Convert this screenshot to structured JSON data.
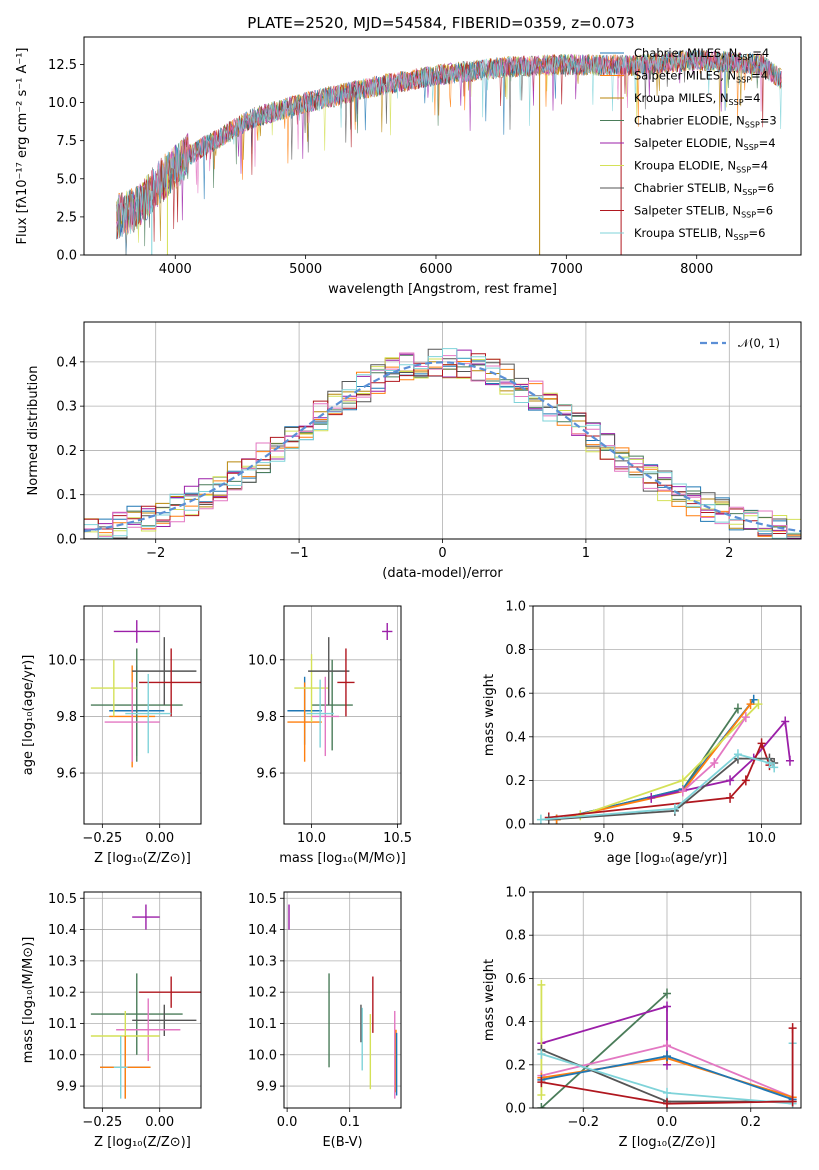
{
  "colors": {
    "blue": "#1f77b4",
    "orange": "#ff7f0e",
    "brown": "#b8860b",
    "green": "#4a7c59",
    "purple": "#9b1fa8",
    "yellow": "#d4e157",
    "gray": "#555555",
    "red": "#b0171f",
    "cyan": "#7fd3d9",
    "pink": "#e377c2",
    "dashed": "#5b8fd6"
  },
  "chart_data": [
    {
      "id": "spectrum",
      "type": "line",
      "title": "PLATE=2520, MJD=54584, FIBERID=0359, z=0.073",
      "xlabel": "wavelength [Angstrom, rest frame]",
      "ylabel": "Flux [fλ10⁻¹⁷ erg cm⁻² s⁻¹ A⁻¹]",
      "xlim": [
        3300,
        8800
      ],
      "ylim": [
        0,
        14.3
      ],
      "xticks": [
        4000,
        5000,
        6000,
        7000,
        8000
      ],
      "yticks": [
        0.0,
        2.5,
        5.0,
        7.5,
        10.0,
        12.5
      ],
      "legend_position": "right",
      "legend": [
        {
          "label": "Chabrier MILES, N",
          "sub": "SSP",
          "suffix": "=4",
          "color": "blue"
        },
        {
          "label": "Salpeter MILES, N",
          "sub": "SSP",
          "suffix": "=4",
          "color": "orange"
        },
        {
          "label": "Kroupa MILES, N",
          "sub": "SSP",
          "suffix": "=4",
          "color": "brown"
        },
        {
          "label": "Chabrier ELODIE, N",
          "sub": "SSP",
          "suffix": "=3",
          "color": "green"
        },
        {
          "label": "Salpeter ELODIE, N",
          "sub": "SSP",
          "suffix": "=4",
          "color": "purple"
        },
        {
          "label": "Kroupa ELODIE, N",
          "sub": "SSP",
          "suffix": "=4",
          "color": "yellow"
        },
        {
          "label": "Chabrier STELIB, N",
          "sub": "SSP",
          "suffix": "=6",
          "color": "gray"
        },
        {
          "label": "Salpeter STELIB, N",
          "sub": "SSP",
          "suffix": "=6",
          "color": "red"
        },
        {
          "label": "Kroupa STELIB, N",
          "sub": "SSP",
          "suffix": "=6",
          "color": "cyan"
        }
      ],
      "continuum": [
        [
          3550,
          2.5
        ],
        [
          3700,
          3.0
        ],
        [
          3900,
          5.0
        ],
        [
          4100,
          6.5
        ],
        [
          4300,
          7.5
        ],
        [
          4600,
          9.0
        ],
        [
          5000,
          10.0
        ],
        [
          5500,
          11.0
        ],
        [
          6000,
          11.8
        ],
        [
          6500,
          12.3
        ],
        [
          7000,
          12.5
        ],
        [
          7500,
          12.4
        ],
        [
          8000,
          12.8
        ],
        [
          8500,
          12.5
        ],
        [
          8650,
          11.5
        ]
      ]
    },
    {
      "id": "residuals",
      "type": "line",
      "xlabel": "(data-model)/error",
      "ylabel": "Normed distribution",
      "xlim": [
        -2.5,
        2.5
      ],
      "ylim": [
        0,
        0.49
      ],
      "xticks": [
        -2,
        -1,
        0,
        1,
        2
      ],
      "yticks": [
        0.0,
        0.1,
        0.2,
        0.3,
        0.4
      ],
      "legend": [
        {
          "label": "𝒩(0, 1)",
          "color": "dashed",
          "style": "dashed"
        }
      ],
      "gaussian": {
        "mean": 0,
        "sigma": 1
      }
    },
    {
      "id": "z-age",
      "type": "scatter",
      "xlabel": "Z [log₁₀(Z/Z⊙)]",
      "ylabel": "age  [log₁₀(age/yr)]",
      "xlim": [
        -0.33,
        0.18
      ],
      "ylim": [
        9.42,
        10.19
      ],
      "xticks": [
        -0.25,
        0.0
      ],
      "yticks": [
        9.6,
        9.8,
        10.0
      ],
      "points": [
        {
          "x": -0.1,
          "y": 10.1,
          "xerr": 0.1,
          "yerr": 0.04,
          "color": "purple"
        },
        {
          "x": -0.1,
          "y": 9.82,
          "xerr": 0.12,
          "yerr": 0.16,
          "color": "blue"
        },
        {
          "x": -0.12,
          "y": 9.8,
          "xerr": 0.1,
          "yerr": 0.18,
          "color": "orange"
        },
        {
          "x": -0.1,
          "y": 9.84,
          "xerr": 0.2,
          "yerr": 0.2,
          "color": "green"
        },
        {
          "x": -0.2,
          "y": 9.9,
          "xerr": 0.1,
          "yerr": 0.1,
          "color": "yellow"
        },
        {
          "x": 0.02,
          "y": 9.96,
          "xerr": 0.14,
          "yerr": 0.12,
          "color": "gray"
        },
        {
          "x": 0.05,
          "y": 9.92,
          "xerr": 0.14,
          "yerr": 0.12,
          "color": "red"
        },
        {
          "x": -0.12,
          "y": 9.78,
          "xerr": 0.12,
          "yerr": 0.14,
          "color": "pink"
        },
        {
          "x": -0.05,
          "y": 9.81,
          "xerr": 0.1,
          "yerr": 0.14,
          "color": "cyan"
        }
      ]
    },
    {
      "id": "mass-age",
      "type": "scatter",
      "xlabel": "mass [log₁₀(M/M⊙)]",
      "xlim": [
        9.84,
        10.52
      ],
      "ylim": [
        9.42,
        10.19
      ],
      "xticks": [
        10.0,
        10.5
      ],
      "yticks": [
        9.6,
        9.8,
        10.0
      ],
      "points": [
        {
          "x": 10.44,
          "y": 10.1,
          "xerr": 0.03,
          "yerr": 0.03,
          "color": "purple"
        },
        {
          "x": 9.96,
          "y": 9.82,
          "xerr": 0.1,
          "yerr": 0.12,
          "color": "blue"
        },
        {
          "x": 9.96,
          "y": 9.78,
          "xerr": 0.1,
          "yerr": 0.14,
          "color": "orange"
        },
        {
          "x": 10.12,
          "y": 9.84,
          "xerr": 0.12,
          "yerr": 0.16,
          "color": "green"
        },
        {
          "x": 10.0,
          "y": 9.9,
          "xerr": 0.1,
          "yerr": 0.12,
          "color": "yellow"
        },
        {
          "x": 10.1,
          "y": 9.96,
          "xerr": 0.12,
          "yerr": 0.12,
          "color": "gray"
        },
        {
          "x": 10.2,
          "y": 9.92,
          "xerr": 0.05,
          "yerr": 0.12,
          "color": "red"
        },
        {
          "x": 10.08,
          "y": 9.8,
          "xerr": 0.08,
          "yerr": 0.14,
          "color": "pink"
        },
        {
          "x": 10.05,
          "y": 9.81,
          "xerr": 0.08,
          "yerr": 0.12,
          "color": "cyan"
        }
      ]
    },
    {
      "id": "age-weight",
      "type": "line",
      "xlabel": "age  [log₁₀(age/yr)]",
      "ylabel": "mass weight",
      "xlim": [
        8.55,
        10.25
      ],
      "ylim": [
        0,
        1.0
      ],
      "xticks": [
        9.0,
        9.5,
        10.0
      ],
      "yticks": [
        0.0,
        0.2,
        0.4,
        0.6,
        0.8,
        1.0
      ],
      "series": [
        {
          "color": "green",
          "x": [
            8.7,
            9.5,
            9.85
          ],
          "y": [
            0.02,
            0.16,
            0.53
          ]
        },
        {
          "color": "blue",
          "x": [
            8.7,
            9.5,
            9.95
          ],
          "y": [
            0.02,
            0.16,
            0.57
          ]
        },
        {
          "color": "orange",
          "x": [
            8.7,
            9.5,
            9.93
          ],
          "y": [
            0.02,
            0.15,
            0.55
          ]
        },
        {
          "color": "yellow",
          "x": [
            8.85,
            9.5,
            9.98
          ],
          "y": [
            0.04,
            0.2,
            0.55
          ]
        },
        {
          "color": "purple",
          "x": [
            9.3,
            9.8,
            9.95,
            10.15,
            10.18
          ],
          "y": [
            0.12,
            0.2,
            0.3,
            0.47,
            0.29
          ]
        },
        {
          "color": "red",
          "x": [
            8.65,
            9.8,
            9.9,
            10.0,
            10.05
          ],
          "y": [
            0.03,
            0.12,
            0.2,
            0.37,
            0.27
          ]
        },
        {
          "color": "gray",
          "x": [
            8.65,
            9.45,
            9.85,
            10.05,
            10.08
          ],
          "y": [
            0.02,
            0.06,
            0.3,
            0.3,
            0.28
          ]
        },
        {
          "color": "cyan",
          "x": [
            8.6,
            9.45,
            9.85,
            10.05,
            10.08
          ],
          "y": [
            0.02,
            0.07,
            0.32,
            0.28,
            0.26
          ]
        },
        {
          "color": "pink",
          "x": [
            9.5,
            9.7,
            9.9
          ],
          "y": [
            0.15,
            0.28,
            0.49
          ]
        }
      ]
    },
    {
      "id": "z-mass",
      "type": "scatter",
      "xlabel": "Z [log₁₀(Z/Z⊙)]",
      "ylabel": "mass [log₁₀(M/M⊙)]",
      "xlim": [
        -0.33,
        0.18
      ],
      "ylim": [
        9.83,
        10.52
      ],
      "xticks": [
        -0.25,
        0.0
      ],
      "yticks": [
        9.9,
        10.0,
        10.1,
        10.2,
        10.3,
        10.4,
        10.5
      ],
      "points": [
        {
          "x": -0.06,
          "y": 10.44,
          "xerr": 0.06,
          "yerr": 0.04,
          "color": "purple"
        },
        {
          "x": 0.05,
          "y": 10.2,
          "xerr": 0.14,
          "yerr": 0.05,
          "color": "red"
        },
        {
          "x": -0.1,
          "y": 10.13,
          "xerr": 0.2,
          "yerr": 0.13,
          "color": "green"
        },
        {
          "x": 0.02,
          "y": 10.11,
          "xerr": 0.14,
          "yerr": 0.05,
          "color": "gray"
        },
        {
          "x": -0.05,
          "y": 10.08,
          "xerr": 0.14,
          "yerr": 0.1,
          "color": "pink"
        },
        {
          "x": -0.15,
          "y": 10.06,
          "xerr": 0.15,
          "yerr": 0.08,
          "color": "yellow"
        },
        {
          "x": -0.15,
          "y": 9.96,
          "xerr": 0.11,
          "yerr": 0.1,
          "color": "blue"
        },
        {
          "x": -0.15,
          "y": 9.96,
          "xerr": 0.11,
          "yerr": 0.1,
          "color": "orange"
        },
        {
          "x": -0.17,
          "y": 9.96,
          "xerr": 0.03,
          "yerr": 0.1,
          "color": "cyan"
        }
      ]
    },
    {
      "id": "ebv-mass",
      "type": "scatter",
      "xlabel": "E(B-V)",
      "xlim": [
        -0.005,
        0.182
      ],
      "ylim": [
        9.83,
        10.52
      ],
      "xticks": [
        0.0,
        0.1
      ],
      "yticks": [
        9.9,
        10.0,
        10.1,
        10.2,
        10.3,
        10.4,
        10.5
      ],
      "points": [
        {
          "x": 0.003,
          "y": 10.44,
          "yerr": 0.04,
          "color": "purple"
        },
        {
          "x": 0.067,
          "y": 10.11,
          "yerr": 0.15,
          "color": "green"
        },
        {
          "x": 0.118,
          "y": 10.1,
          "yerr": 0.06,
          "color": "gray"
        },
        {
          "x": 0.12,
          "y": 10.05,
          "yerr": 0.1,
          "color": "cyan"
        },
        {
          "x": 0.133,
          "y": 10.01,
          "yerr": 0.12,
          "color": "yellow"
        },
        {
          "x": 0.137,
          "y": 10.16,
          "yerr": 0.09,
          "color": "red"
        },
        {
          "x": 0.172,
          "y": 10.0,
          "yerr": 0.14,
          "color": "pink"
        },
        {
          "x": 0.174,
          "y": 9.98,
          "yerr": 0.1,
          "color": "orange"
        },
        {
          "x": 0.175,
          "y": 9.97,
          "yerr": 0.1,
          "color": "blue"
        }
      ]
    },
    {
      "id": "z-weight",
      "type": "line",
      "xlabel": "Z [log₁₀(Z/Z⊙)]",
      "ylabel": "mass weight",
      "xlim": [
        -0.32,
        0.32
      ],
      "ylim": [
        0,
        1.0
      ],
      "xticks": [
        -0.2,
        0.0,
        0.2
      ],
      "yticks": [
        0.0,
        0.2,
        0.4,
        0.6,
        0.8,
        1.0
      ],
      "series": [
        {
          "color": "green",
          "x": [
            -0.3,
            0.0
          ],
          "y": [
            0.0,
            0.53
          ]
        },
        {
          "color": "purple",
          "x": [
            -0.3,
            0.0,
            0.0
          ],
          "y": [
            0.3,
            0.47,
            0.2
          ]
        },
        {
          "color": "yellow",
          "x": [
            -0.3,
            -0.3
          ],
          "y": [
            0.57,
            0.06
          ]
        },
        {
          "color": "pink",
          "x": [
            -0.3,
            0.0,
            0.3
          ],
          "y": [
            0.15,
            0.29,
            0.05
          ]
        },
        {
          "color": "orange",
          "x": [
            -0.3,
            0.0,
            0.3
          ],
          "y": [
            0.14,
            0.23,
            0.05
          ]
        },
        {
          "color": "blue",
          "x": [
            -0.3,
            0.0,
            0.3
          ],
          "y": [
            0.13,
            0.24,
            0.04
          ]
        },
        {
          "color": "gray",
          "x": [
            -0.3,
            0.0,
            0.3
          ],
          "y": [
            0.27,
            0.03,
            0.03
          ]
        },
        {
          "color": "cyan",
          "x": [
            -0.3,
            0.0,
            0.3,
            0.3
          ],
          "y": [
            0.25,
            0.07,
            0.02,
            0.3
          ]
        },
        {
          "color": "red",
          "x": [
            -0.3,
            0.0,
            0.3,
            0.3
          ],
          "y": [
            0.12,
            0.02,
            0.03,
            0.37
          ]
        }
      ]
    }
  ]
}
